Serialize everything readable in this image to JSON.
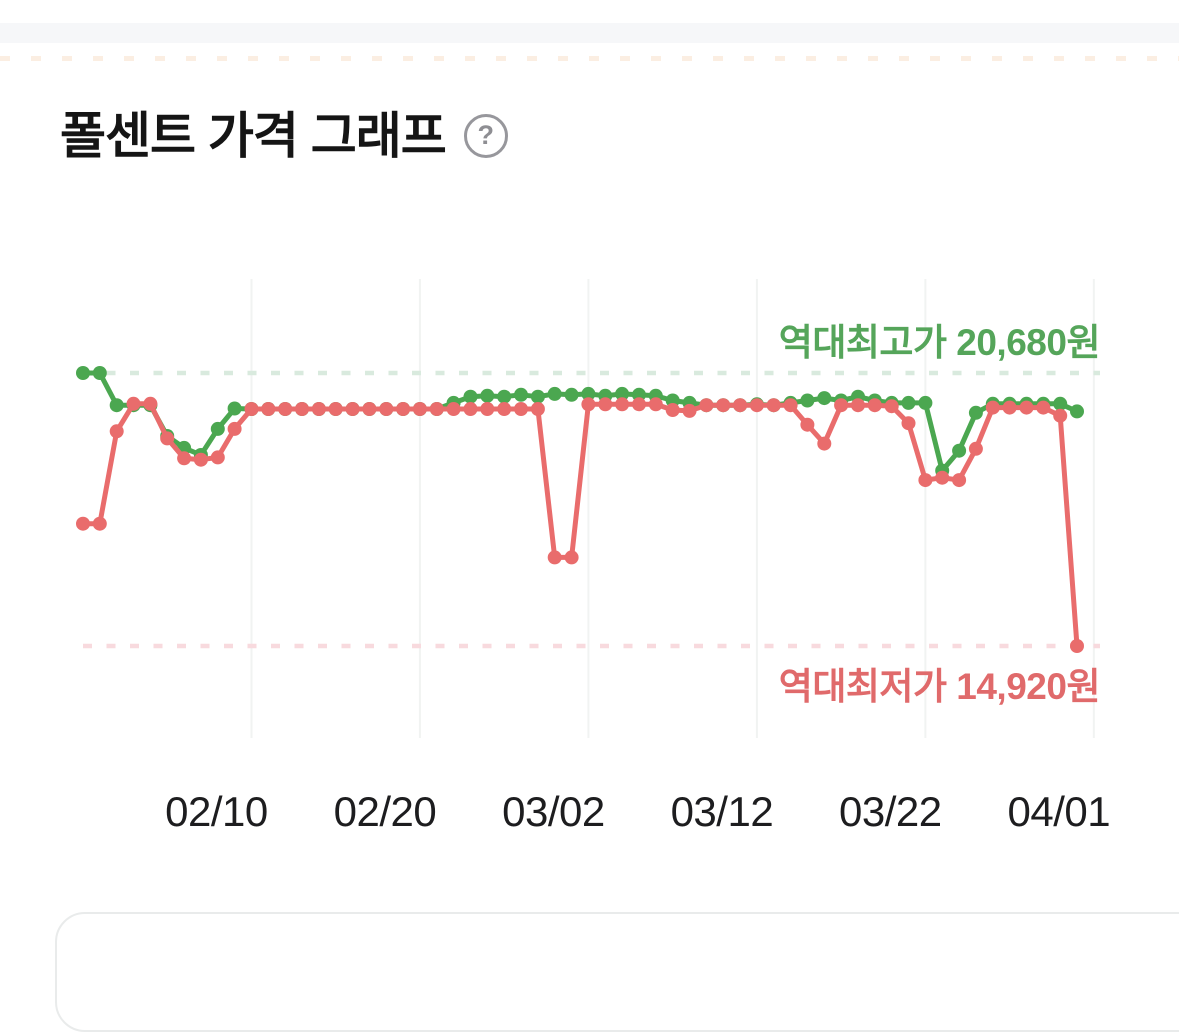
{
  "page": {
    "title": "폴센트 가격 그래프",
    "help_glyph": "?"
  },
  "annotations": {
    "high_label": "역대최고가",
    "high_value": "20,680원",
    "low_label": "역대최저가",
    "low_value": "14,920원"
  },
  "chart_data": {
    "type": "line",
    "title": "폴센트 가격 그래프",
    "x_tick_labels": [
      "02/10",
      "02/20",
      "03/02",
      "03/12",
      "03/22",
      "04/01"
    ],
    "dates": [
      "02/01",
      "02/02",
      "02/03",
      "02/04",
      "02/05",
      "02/06",
      "02/07",
      "02/08",
      "02/09",
      "02/10",
      "02/11",
      "02/12",
      "02/13",
      "02/14",
      "02/15",
      "02/16",
      "02/17",
      "02/18",
      "02/19",
      "02/20",
      "02/21",
      "02/22",
      "02/23",
      "02/24",
      "02/25",
      "02/26",
      "02/27",
      "02/28",
      "03/01",
      "03/02",
      "03/03",
      "03/04",
      "03/05",
      "03/06",
      "03/07",
      "03/08",
      "03/09",
      "03/10",
      "03/11",
      "03/12",
      "03/13",
      "03/14",
      "03/15",
      "03/16",
      "03/17",
      "03/18",
      "03/19",
      "03/20",
      "03/21",
      "03/22",
      "03/23",
      "03/24",
      "03/25",
      "03/26",
      "03/27",
      "03/28",
      "03/29",
      "03/30",
      "03/31",
      "04/01"
    ],
    "ylim": [
      14920,
      20680
    ],
    "reference_lines": {
      "highest_price": 20680,
      "lowest_price": 14920
    },
    "legend_position": "none",
    "grid": "vertical-only",
    "series": [
      {
        "name": "green-price-line",
        "color": "#4ba750",
        "values": [
          20680,
          20680,
          20000,
          20000,
          20000,
          19350,
          19100,
          18950,
          19500,
          19930,
          19920,
          19920,
          19920,
          19920,
          19920,
          19920,
          19920,
          19920,
          19920,
          19920,
          19920,
          19920,
          20050,
          20180,
          20200,
          20180,
          20220,
          20180,
          20240,
          20220,
          20240,
          20200,
          20240,
          20220,
          20200,
          20100,
          20050,
          20000,
          20000,
          20000,
          20020,
          20000,
          20050,
          20100,
          20150,
          20100,
          20180,
          20100,
          20050,
          20050,
          20050,
          18620,
          19040,
          19840,
          20030,
          20030,
          20030,
          20030,
          20030,
          19870
        ]
      },
      {
        "name": "red-price-line",
        "color": "#e96c6c",
        "values": [
          17500,
          17500,
          19450,
          20030,
          20030,
          19300,
          18880,
          18850,
          18900,
          19500,
          19920,
          19920,
          19920,
          19920,
          19920,
          19920,
          19920,
          19920,
          19920,
          19920,
          19920,
          19920,
          19920,
          19920,
          19920,
          19920,
          19920,
          19920,
          16790,
          16790,
          20020,
          20020,
          20020,
          20020,
          20020,
          19900,
          19880,
          20000,
          20000,
          20000,
          20000,
          20000,
          20000,
          19590,
          19190,
          20000,
          20000,
          20000,
          19980,
          19620,
          18420,
          18470,
          18420,
          19080,
          19950,
          19950,
          19950,
          19950,
          19780,
          14920
        ]
      }
    ],
    "theme": {
      "high_dash_color": "#d9eade",
      "low_dash_color": "#f8dade",
      "gridline_color": "#f1f3f2",
      "high_text_color": "#55a55a",
      "low_text_color": "#e06a6b",
      "axis_label_color": "#1d1d1f"
    }
  }
}
